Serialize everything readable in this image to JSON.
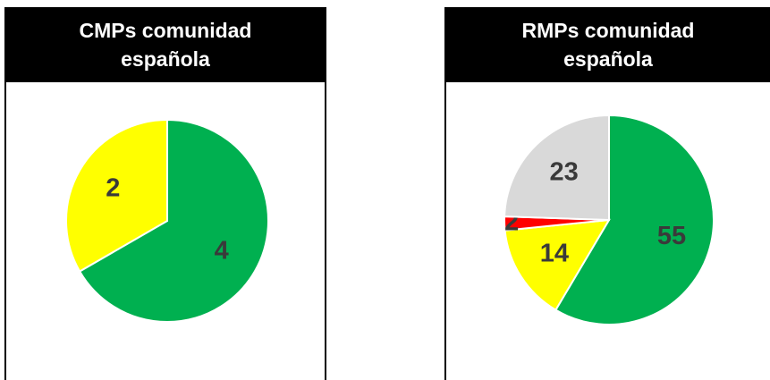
{
  "chart_data": [
    {
      "type": "pie",
      "title": "CMPs comunidad española",
      "values": [
        4,
        2
      ],
      "colors": [
        "#00b050",
        "#ffff00"
      ]
    },
    {
      "type": "pie",
      "title": "RMPs comunidad española",
      "values": [
        55,
        14,
        2,
        23
      ],
      "colors": [
        "#00b050",
        "#ffff00",
        "#ff0000",
        "#d9d9d9"
      ]
    }
  ]
}
